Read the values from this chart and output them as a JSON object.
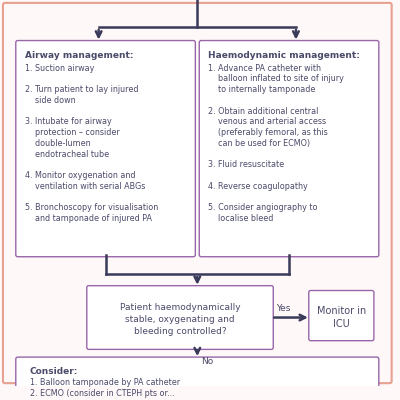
{
  "bg_color": "#fff8f8",
  "border_color": "#e8a090",
  "box_border_color": "#9966aa",
  "box_fill_color": "#ffffff",
  "text_color": "#4a4a6a",
  "arrow_color": "#3a3a5a",
  "airway_title": "Airway management:",
  "airway_lines": [
    "1. Suction airway",
    "",
    "2. Turn patient to lay injured",
    "    side down",
    "",
    "3. Intubate for airway",
    "    protection – consider",
    "    double-lumen",
    "    endotracheal tube",
    "",
    "4. Monitor oxygenation and",
    "    ventilation with serial ABGs",
    "",
    "5. Bronchoscopy for visualisation",
    "    and tamponade of injured PA"
  ],
  "haemo_title": "Haemodynamic management:",
  "haemo_lines": [
    "1. Advance PA catheter with",
    "    balloon inflated to site of injury",
    "    to internally tamponade",
    "",
    "2. Obtain additional central",
    "    venous and arterial access",
    "    (preferably femoral, as this",
    "    can be used for ECMO)",
    "",
    "3. Fluid resuscitate",
    "",
    "4. Reverse coagulopathy",
    "",
    "5. Consider angiography to",
    "    localise bleed"
  ],
  "question_text": "Patient haemodynamically\nstable, oxygenating and\nbleeding controlled?",
  "yes_label": "Yes",
  "no_label": "No",
  "icu_text": "Monitor in\nICU",
  "consider_title": "Consider:",
  "consider_lines": [
    "1. Balloon tamponade by PA catheter",
    "2. ECMO (consider in CTEPH pts or..."
  ],
  "fontsize_sm": 5.8,
  "fontsize_md": 6.5,
  "fontsize_lg": 7.0
}
